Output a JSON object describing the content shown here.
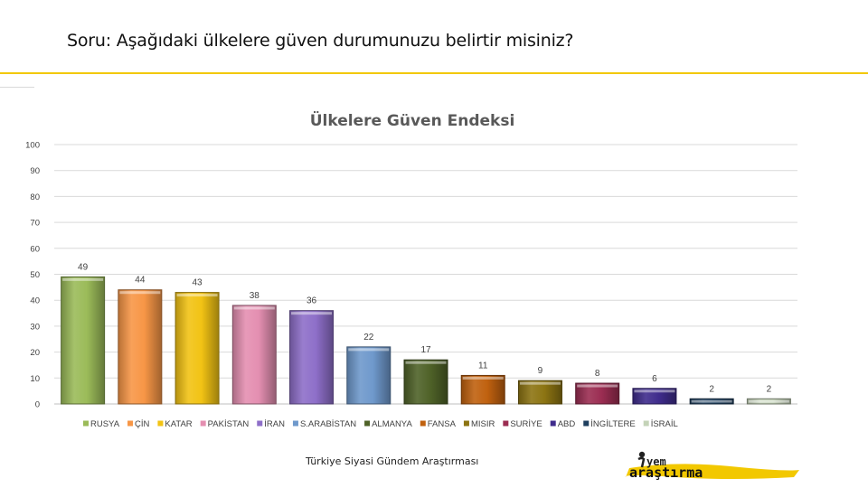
{
  "question": "Soru: Aşağıdaki ülkelere güven durumunuzu belirtir misiniz?",
  "footer": "Türkiye Siyasi Gündem Araştırması",
  "logo": {
    "text_top": "yem",
    "text_bottom": "araştırma"
  },
  "chart_data": {
    "type": "bar",
    "title": "Ülkelere Güven Endeksi",
    "xlabel": "",
    "ylabel": "",
    "ylim": [
      0,
      100
    ],
    "yticks": [
      0,
      10,
      20,
      30,
      40,
      50,
      60,
      70,
      80,
      90,
      100
    ],
    "grid": true,
    "legend_position": "bottom",
    "categories": [
      "RUSYA",
      "ÇİN",
      "KATAR",
      "PAKİSTAN",
      "İRAN",
      "S.ARABİSTAN",
      "ALMANYA",
      "FANSA",
      "MISIR",
      "SURİYE",
      "ABD",
      "İNGİLTERE",
      "İSRAİL"
    ],
    "values": [
      49,
      44,
      43,
      38,
      36,
      22,
      17,
      11,
      9,
      8,
      6,
      2,
      2
    ],
    "colors": [
      "#9bbb59",
      "#f79646",
      "#f2c314",
      "#e48fb1",
      "#8e6fc9",
      "#6f99cc",
      "#4f6228",
      "#c0610f",
      "#8c7412",
      "#9b2d52",
      "#3f2c8c",
      "#1f3f5f",
      "#c4d3b8"
    ]
  }
}
